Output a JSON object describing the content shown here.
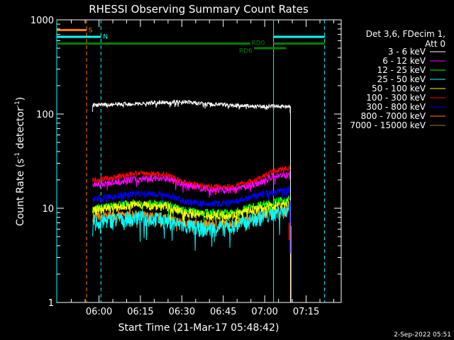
{
  "chart_data": {
    "type": "line",
    "title": "RHESSI Observing Summary Count Rates",
    "xlabel": "Start Time (21-Mar-17 05:48:42)",
    "ylabel": {
      "prefix": "Count Rate (s",
      "sup1": "-1",
      "mid": " detector",
      "sup2": "-1",
      "suffix": ")"
    },
    "x_unit": "minutes after 05:48:42",
    "xlim": [
      -4,
      99
    ],
    "ylim": [
      1,
      1000
    ],
    "yscale": "log",
    "x_ticks": [
      {
        "t": 11.3,
        "label": "06:00"
      },
      {
        "t": 26.3,
        "label": "06:15"
      },
      {
        "t": 41.3,
        "label": "06:30"
      },
      {
        "t": 56.3,
        "label": "06:45"
      },
      {
        "t": 71.3,
        "label": "07:00"
      },
      {
        "t": 86.3,
        "label": "07:15"
      }
    ],
    "x_minor_ticks": [
      1.3,
      6.3,
      16.3,
      21.3,
      31.3,
      36.3,
      46.3,
      51.3,
      61.3,
      66.3,
      76.3,
      81.3,
      91.3,
      96.3
    ],
    "y_ticks": [
      {
        "v": 1,
        "label": "1"
      },
      {
        "v": 10,
        "label": "10"
      },
      {
        "v": 100,
        "label": "100"
      },
      {
        "v": 1000,
        "label": "1000"
      }
    ],
    "data_window": [
      9,
      80.5
    ],
    "series": [
      {
        "name": "3 - 6 keV",
        "color": "#ffffff",
        "profile": [
          [
            9,
            124
          ],
          [
            15,
            126
          ],
          [
            25,
            129
          ],
          [
            35,
            133
          ],
          [
            42,
            135
          ],
          [
            50,
            128
          ],
          [
            60,
            124
          ],
          [
            70,
            120
          ],
          [
            80.5,
            121
          ]
        ],
        "noise": 0.035
      },
      {
        "name": "6 - 12 keV",
        "color": "#ff00ff",
        "profile": [
          [
            9,
            18
          ],
          [
            15,
            18.5
          ],
          [
            25,
            20.5
          ],
          [
            35,
            21
          ],
          [
            42,
            18
          ],
          [
            50,
            16
          ],
          [
            60,
            15.5
          ],
          [
            68,
            18
          ],
          [
            75,
            22
          ],
          [
            80.5,
            23
          ]
        ],
        "noise": 0.06
      },
      {
        "name": "12 - 25 keV",
        "color": "#00ff00",
        "profile": [
          [
            9,
            10
          ],
          [
            15,
            10.5
          ],
          [
            25,
            11.5
          ],
          [
            35,
            11
          ],
          [
            42,
            9.5
          ],
          [
            50,
            9
          ],
          [
            60,
            9
          ],
          [
            70,
            11
          ],
          [
            80.5,
            12.5
          ]
        ],
        "noise": 0.07
      },
      {
        "name": "25 - 50 keV",
        "color": "#00ffff",
        "profile": [
          [
            9,
            7
          ],
          [
            15,
            7.5
          ],
          [
            25,
            8
          ],
          [
            35,
            7.5
          ],
          [
            42,
            6.5
          ],
          [
            50,
            6
          ],
          [
            60,
            6.5
          ],
          [
            70,
            8
          ],
          [
            80.5,
            10
          ]
        ],
        "noise": 0.14
      },
      {
        "name": "50 - 100 keV",
        "color": "#ffff00",
        "profile": [
          [
            9,
            9.5
          ],
          [
            15,
            10
          ],
          [
            25,
            11
          ],
          [
            35,
            10.5
          ],
          [
            42,
            9
          ],
          [
            50,
            8.5
          ],
          [
            60,
            8.5
          ],
          [
            70,
            10
          ],
          [
            80.5,
            11.5
          ]
        ],
        "noise": 0.08
      },
      {
        "name": "100 - 300 keV",
        "color": "#ff0000",
        "profile": [
          [
            9,
            20
          ],
          [
            15,
            21
          ],
          [
            25,
            23.5
          ],
          [
            35,
            23
          ],
          [
            42,
            19
          ],
          [
            50,
            17
          ],
          [
            60,
            17
          ],
          [
            68,
            20
          ],
          [
            75,
            25
          ],
          [
            80.5,
            27
          ]
        ],
        "noise": 0.05
      },
      {
        "name": "300 - 800 keV",
        "color": "#0000ff",
        "profile": [
          [
            9,
            12.5
          ],
          [
            15,
            13
          ],
          [
            25,
            14.5
          ],
          [
            35,
            14
          ],
          [
            42,
            12
          ],
          [
            50,
            11
          ],
          [
            60,
            11.5
          ],
          [
            70,
            14
          ],
          [
            80.5,
            16
          ]
        ],
        "noise": 0.06
      },
      {
        "name": "800 - 7000 keV",
        "color": "#ff8000",
        "profile": [
          [
            9,
            8
          ],
          [
            15,
            8.3
          ],
          [
            25,
            8.5
          ],
          [
            35,
            8
          ],
          [
            42,
            7
          ],
          [
            50,
            6.8
          ],
          [
            60,
            7
          ],
          [
            70,
            8.3
          ],
          [
            80.5,
            10
          ]
        ],
        "noise": 0.08
      },
      {
        "name": "7000 - 15000 keV",
        "color": "#a07800",
        "profile": [
          [
            9,
            1
          ],
          [
            80.5,
            1
          ]
        ],
        "noise": 0
      }
    ],
    "flags": [
      {
        "label": "S",
        "color": "#ff8000",
        "segments": [
          [
            -4,
            6.8
          ]
        ],
        "value": 780,
        "label_t": 7.5,
        "label_value": 790
      },
      {
        "label": "N",
        "color": "#00ffff",
        "segments": [
          [
            -4,
            12
          ],
          [
            74.5,
            93
          ]
        ],
        "value": 660,
        "label_t": 12.8,
        "label_value": 680
      },
      {
        "label": "RD0",
        "color": "#008000",
        "segments": [
          [
            -4,
            66
          ],
          [
            74.5,
            93
          ]
        ],
        "value": 560,
        "label_t": 66.5,
        "label_value": 580
      },
      {
        "label": "RD6",
        "color": "#008000",
        "segments": [
          [
            67.5,
            79
          ]
        ],
        "value": 500,
        "label_t": 62,
        "label_value": 480
      }
    ],
    "vertical_lines": [
      {
        "t": -4,
        "color": "#00ffff",
        "style": "solid"
      },
      {
        "t": 74.5,
        "color": "#00ffff",
        "style": "solid"
      },
      {
        "t": 6.8,
        "color": "#ff8000",
        "style": "dashed"
      },
      {
        "t": 12,
        "color": "#00ffff",
        "style": "dashed"
      },
      {
        "t": 93,
        "color": "#00ffff",
        "style": "dashed"
      }
    ],
    "legend": {
      "position": "right",
      "header": [
        "Det 3,6, FDecim 1,",
        "Att 0"
      ]
    }
  },
  "footer": {
    "timestamp": "2-Sep-2022 05:51"
  }
}
